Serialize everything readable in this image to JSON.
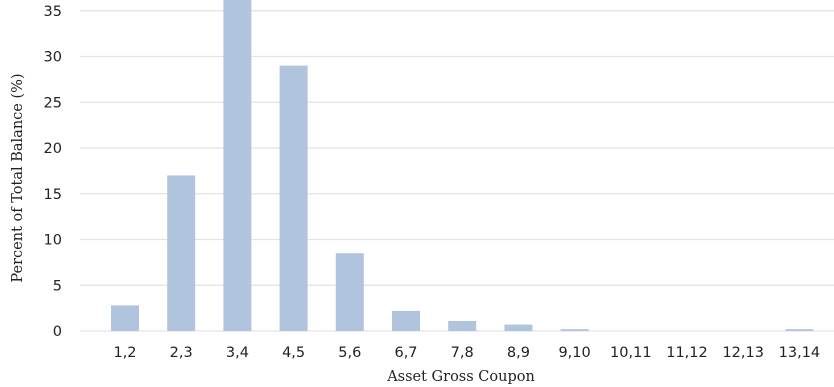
{
  "chart_data": {
    "type": "bar",
    "xlabel": "Asset Gross Coupon",
    "ylabel": "Percent of Total Balance (%)",
    "categories": [
      "1,2",
      "2,3",
      "3,4",
      "4,5",
      "5,6",
      "6,7",
      "7,8",
      "8,9",
      "9,10",
      "10,11",
      "11,12",
      "12,13",
      "13,14"
    ],
    "values": [
      2.8,
      17.0,
      37.0,
      29.0,
      8.5,
      2.2,
      1.1,
      0.7,
      0.2,
      0.0,
      0.0,
      0.0,
      0.2
    ],
    "yticks": [
      0,
      5,
      10,
      15,
      20,
      25,
      30,
      35
    ],
    "ylim": [
      0,
      36.5
    ],
    "grid": true,
    "bar_color": "#b0c4de"
  }
}
